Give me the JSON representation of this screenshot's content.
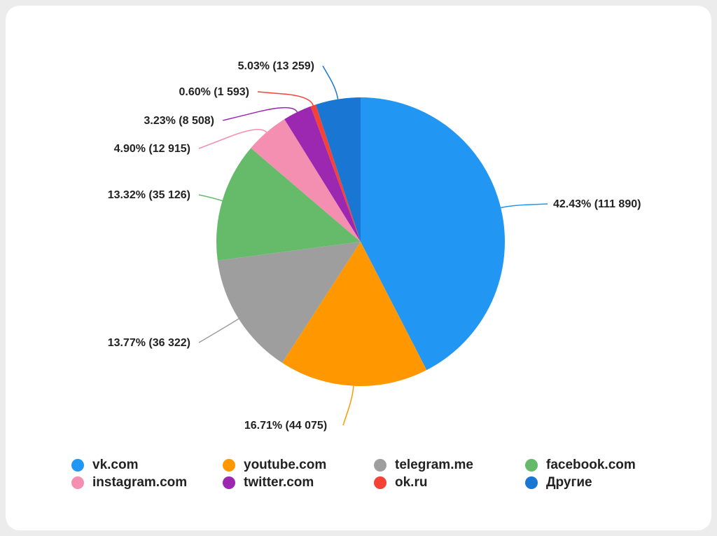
{
  "chart_data": {
    "type": "pie",
    "title": "",
    "legend_position": "bottom",
    "slices": [
      {
        "name": "vk.com",
        "percent": 42.43,
        "value": 111890,
        "label": "42.43% (111 890)",
        "color": "#2196f3"
      },
      {
        "name": "youtube.com",
        "percent": 16.71,
        "value": 44075,
        "label": "16.71% (44 075)",
        "color": "#ff9800"
      },
      {
        "name": "telegram.me",
        "percent": 13.77,
        "value": 36322,
        "label": "13.77% (36 322)",
        "color": "#9e9e9e"
      },
      {
        "name": "facebook.com",
        "percent": 13.32,
        "value": 35126,
        "label": "13.32% (35 126)",
        "color": "#66bb6a"
      },
      {
        "name": "instagram.com",
        "percent": 4.9,
        "value": 12915,
        "label": "4.90% (12 915)",
        "color": "#f48fb1"
      },
      {
        "name": "twitter.com",
        "percent": 3.23,
        "value": 8508,
        "label": "3.23% (8 508)",
        "color": "#9c27b0"
      },
      {
        "name": "ok.ru",
        "percent": 0.6,
        "value": 1593,
        "label": "0.60% (1 593)",
        "color": "#f44336"
      },
      {
        "name": "Другие",
        "percent": 5.03,
        "value": 13259,
        "label": "5.03% (13 259)",
        "color": "#1976d2"
      }
    ]
  }
}
